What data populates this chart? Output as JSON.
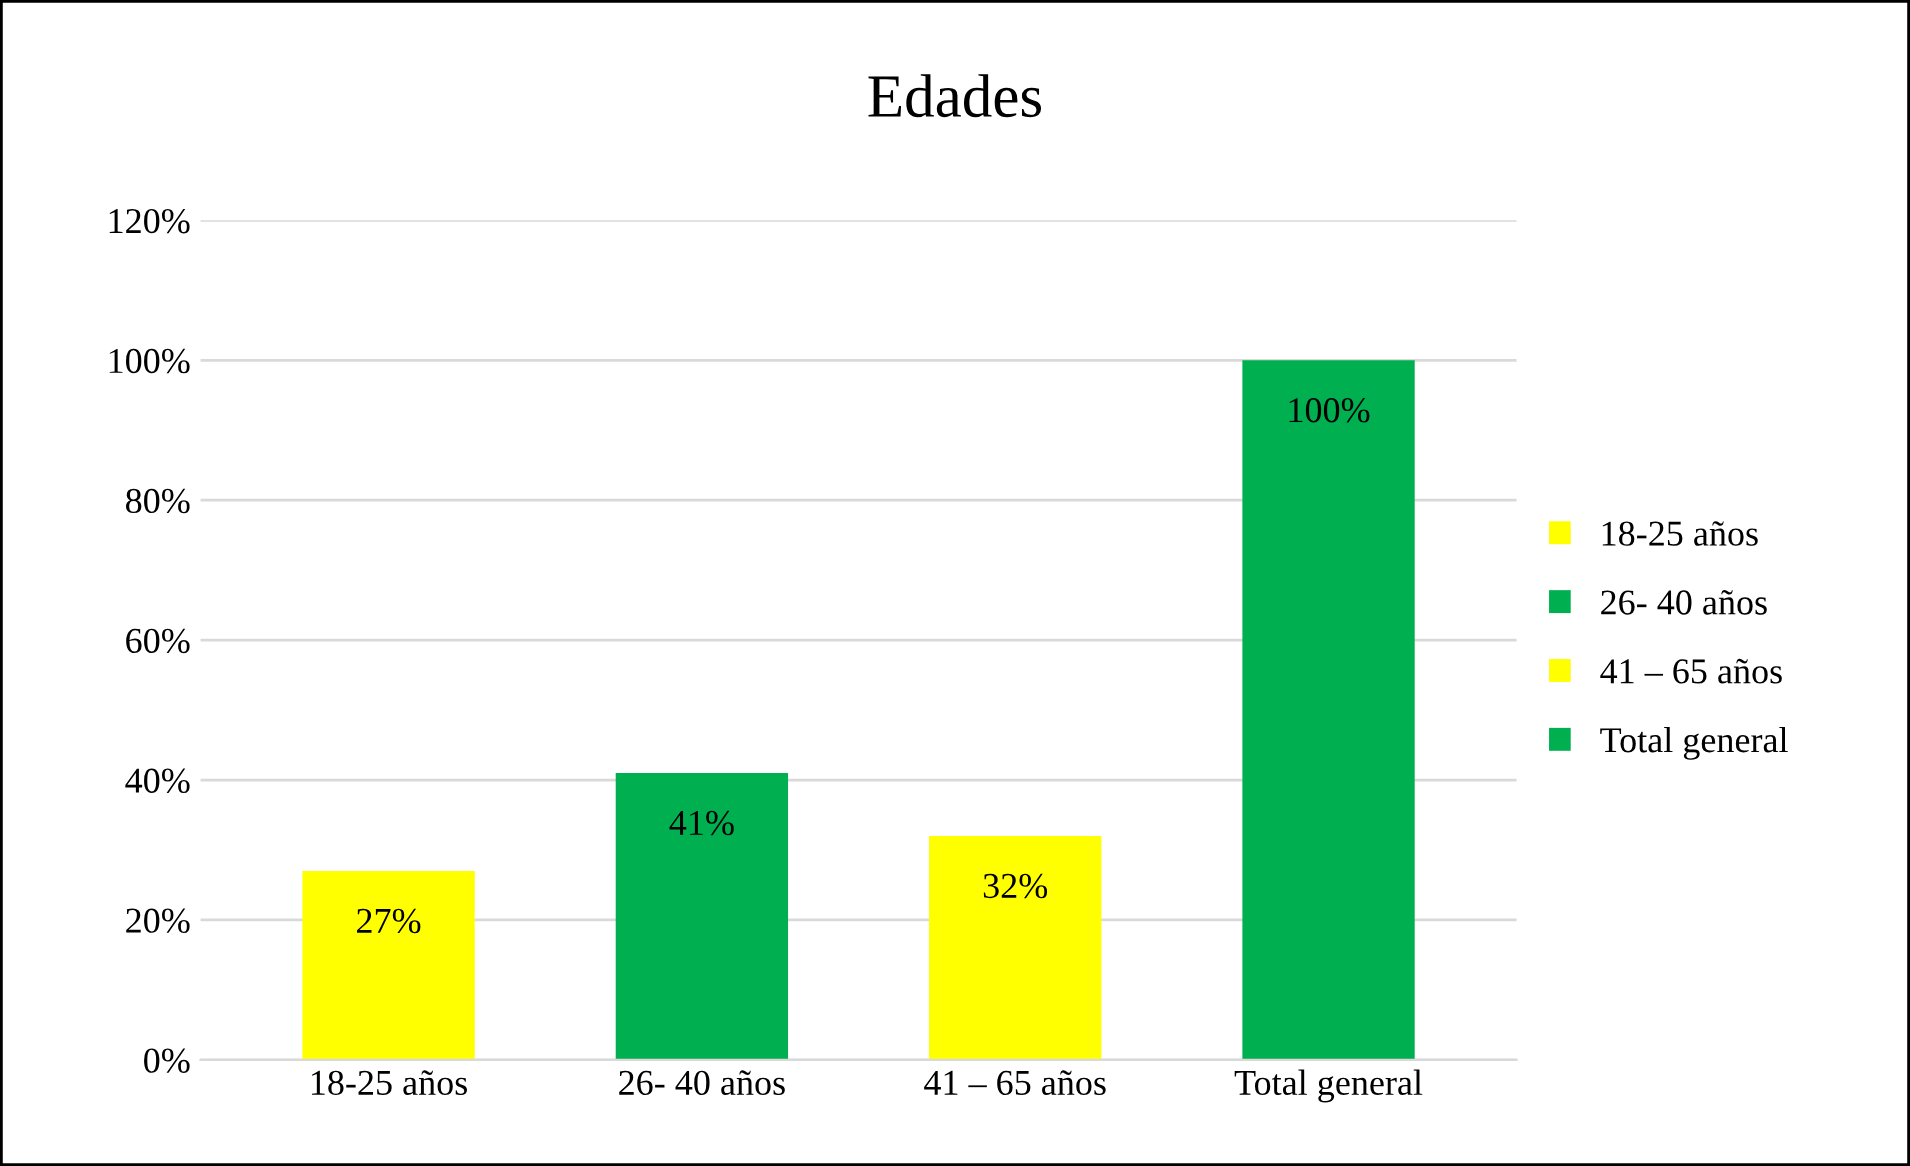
{
  "chart_data": {
    "type": "bar",
    "title": "Edades",
    "categories": [
      "18-25 años",
      "26- 40 años",
      "41 – 65 años",
      "Total general"
    ],
    "series": [
      {
        "name": "18-25 años",
        "color": "#ffff00",
        "values": [
          27,
          null,
          null,
          null
        ],
        "value_labels": [
          "27%",
          null,
          null,
          null
        ]
      },
      {
        "name": "26- 40 años",
        "color": "#00b050",
        "values": [
          null,
          41,
          null,
          null
        ],
        "value_labels": [
          null,
          "41%",
          null,
          null
        ]
      },
      {
        "name": "41 – 65 años",
        "color": "#ffff00",
        "values": [
          null,
          null,
          32,
          null
        ],
        "value_labels": [
          null,
          null,
          "32%",
          null
        ]
      },
      {
        "name": "Total general",
        "color": "#00b050",
        "values": [
          null,
          null,
          null,
          100
        ],
        "value_labels": [
          null,
          null,
          null,
          "100%"
        ]
      }
    ],
    "ylim": [
      0,
      120
    ],
    "yticks": [
      {
        "value": 0,
        "label": "0%"
      },
      {
        "value": 20,
        "label": "20%"
      },
      {
        "value": 40,
        "label": "40%"
      },
      {
        "value": 60,
        "label": "60%"
      },
      {
        "value": 80,
        "label": "80%"
      },
      {
        "value": 100,
        "label": "100%"
      },
      {
        "value": 120,
        "label": "120%"
      }
    ],
    "grid": "y",
    "legend": "right"
  }
}
